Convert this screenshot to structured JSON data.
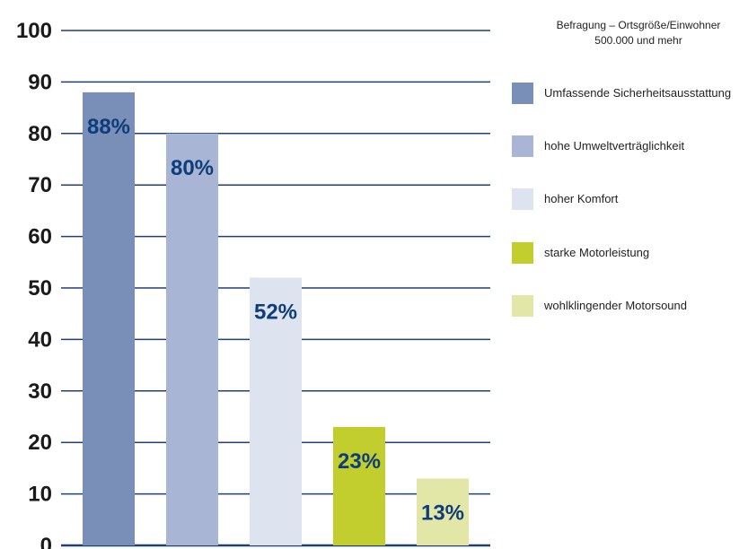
{
  "survey": {
    "line1": "Befragung – Ortsgröße/Einwohner",
    "line2": "500.000 und mehr"
  },
  "chart_data": {
    "type": "bar",
    "title": "",
    "xlabel": "",
    "ylabel": "",
    "ylim": [
      0,
      100
    ],
    "yticks": [
      "0",
      "10",
      "20",
      "30",
      "40",
      "50",
      "60",
      "70",
      "80",
      "90",
      "100"
    ],
    "grid": true,
    "legend_position": "right",
    "categories": [
      "Umfassende Sicherheitsausstattung",
      "hohe Umweltverträglichkeit",
      "hoher Komfort",
      "starke Motorleistung",
      "wohlklingender Motorsound"
    ],
    "values": [
      88,
      80,
      52,
      23,
      13
    ],
    "labels": [
      "88%",
      "80%",
      "52%",
      "23%",
      "13%"
    ],
    "colors": [
      "#7a8fb8",
      "#a9b5d4",
      "#dde3ef",
      "#c2cd2e",
      "#e2e6a6"
    ]
  }
}
